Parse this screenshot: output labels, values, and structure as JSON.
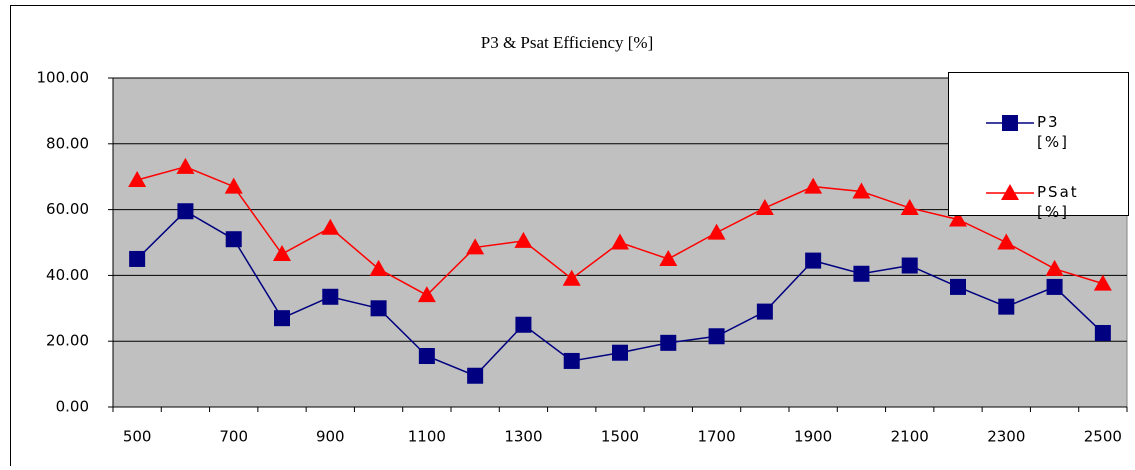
{
  "chart_data": {
    "type": "line",
    "title": "P3 & Psat Efficiency [%]",
    "categories": [
      500,
      null,
      700,
      null,
      900,
      null,
      1100,
      null,
      1300,
      null,
      1500,
      null,
      1700,
      null,
      1900,
      null,
      2100,
      null,
      2300,
      null,
      2500
    ],
    "series": [
      {
        "name": "P3 [%]",
        "color": "#000080",
        "marker": "square",
        "values": [
          45,
          59.5,
          51,
          27,
          33.5,
          30,
          15.5,
          9.5,
          25,
          14,
          16.5,
          19.5,
          21.5,
          29,
          44.5,
          40.5,
          43,
          36.5,
          30.5,
          36.5,
          22.5
        ]
      },
      {
        "name": "PSat [%]",
        "color": "#ff0000",
        "marker": "triangle",
        "values": [
          69,
          73,
          67,
          46.5,
          54.5,
          42,
          34,
          48.5,
          50.5,
          39,
          50,
          45,
          53,
          60.5,
          67,
          65.5,
          60.5,
          57,
          50,
          42,
          37.5
        ]
      }
    ],
    "ylim": [
      0,
      100
    ],
    "yticks": [
      {
        "value": 0,
        "label": "0.00"
      },
      {
        "value": 20,
        "label": "20.00"
      },
      {
        "value": 40,
        "label": "40.00"
      },
      {
        "value": 60,
        "label": "60.00"
      },
      {
        "value": 80,
        "label": "80.00"
      },
      {
        "value": 100,
        "label": "100.00"
      }
    ],
    "grid": true,
    "legend": "top-right",
    "plot_background": "#c0c0c0"
  }
}
